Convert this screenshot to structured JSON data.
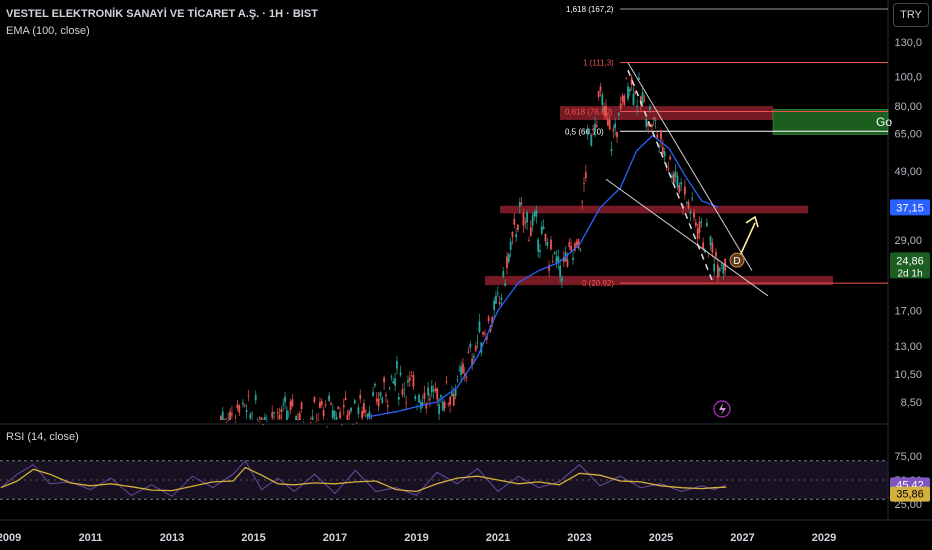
{
  "header": {
    "title": "VESTEL ELEKTRONİK SANAYİ VE TİCARET A.Ş. · 1H · BIST",
    "indicator": "EMA (100, close)",
    "currency": "TRY"
  },
  "colors": {
    "background": "#000000",
    "ema": "#2962ff",
    "rsi_line": "#d4b03c",
    "rsi_band": "#2a1f3d",
    "zone": "#8b1e2b",
    "green_box": "#1b5e20",
    "candle_up": "#26a69a",
    "candle_down": "#ef5350"
  },
  "chart_data": {
    "type": "line",
    "x_ticks": [
      "2009",
      "2011",
      "2013",
      "2015",
      "2017",
      "2019",
      "2021",
      "2023",
      "2025",
      "2027",
      "2029"
    ],
    "y_ticks": [
      "130,0",
      "100,0",
      "80,00",
      "65,00",
      "49,00",
      "29,00",
      "17,00",
      "13,00",
      "10,50",
      "8,50"
    ],
    "y_scale": "log",
    "price_badges": [
      {
        "label": "37,15",
        "value": 37.15,
        "color": "#2962ff"
      },
      {
        "label": "24,86",
        "value": 24.86,
        "color": "#1b5e20",
        "sub": "2d 1h"
      }
    ],
    "fib_levels": [
      {
        "label": "1,618 (167,2)",
        "value": 167.2
      },
      {
        "label": "1 (111,3)",
        "value": 111.3
      },
      {
        "label": "0,618 (76,80)",
        "value": 76.8
      },
      {
        "label": "0,5 (66,10)",
        "value": 66.1
      },
      {
        "label": "0 (20,92)",
        "value": 20.92
      }
    ],
    "annotation_point": "D",
    "green_box_text": "Go",
    "series": [
      {
        "name": "price",
        "x": [
          2014.2,
          2015,
          2016,
          2017,
          2017.5,
          2018,
          2018.5,
          2019,
          2019.5,
          2020,
          2020.5,
          2021,
          2021.5,
          2022,
          2022.5,
          2023,
          2023.2,
          2023.5,
          2023.8,
          2024,
          2024.2,
          2024.5,
          2024.8,
          2025,
          2025.3,
          2025.6,
          2026,
          2026.3,
          2026.6
        ],
        "y": [
          7.6,
          7.8,
          7.7,
          7.9,
          8.0,
          8.5,
          10.2,
          9.2,
          8.7,
          9.5,
          13.5,
          17.5,
          35,
          31,
          23,
          28,
          60,
          85,
          62,
          75,
          100,
          84,
          72,
          60,
          50,
          40,
          31,
          26,
          24.9
        ]
      },
      {
        "name": "EMA (100, close)",
        "x": [
          2017.8,
          2018.5,
          2019,
          2019.5,
          2020,
          2020.5,
          2021,
          2021.5,
          2022,
          2022.5,
          2023,
          2023.5,
          2024,
          2024.4,
          2024.8,
          2025.2,
          2025.6,
          2026,
          2026.4
        ],
        "y": [
          7.6,
          7.9,
          8.2,
          8.5,
          9.5,
          12,
          17,
          21,
          23,
          24.5,
          28,
          37,
          43,
          57,
          64,
          58,
          47,
          39,
          37.2
        ]
      }
    ],
    "rsi": {
      "label": "RSI (14, close)",
      "ticks": [
        "75,00",
        "50,00",
        "25,00"
      ],
      "badges": [
        {
          "label": "45,42",
          "value": 45.42,
          "color": "#7e57c2"
        },
        {
          "label": "35,86",
          "value": 35.86,
          "color": "#d4b03c"
        }
      ],
      "x": [
        2008.8,
        2009.2,
        2009.6,
        2010,
        2010.5,
        2011,
        2011.5,
        2012,
        2012.5,
        2013,
        2013.5,
        2014,
        2014.5,
        2014.8,
        2015.2,
        2015.6,
        2016,
        2016.5,
        2017,
        2017.5,
        2018,
        2018.5,
        2019,
        2019.5,
        2020,
        2020.5,
        2021,
        2021.5,
        2022,
        2022.5,
        2023,
        2023.5,
        2024,
        2024.5,
        2025,
        2025.5,
        2026,
        2026.3,
        2026.6
      ],
      "y": [
        42,
        56,
        66,
        46,
        48,
        40,
        52,
        34,
        45,
        33,
        54,
        42,
        56,
        70,
        40,
        52,
        38,
        56,
        36,
        60,
        38,
        42,
        34,
        58,
        46,
        62,
        38,
        54,
        42,
        48,
        66,
        44,
        54,
        42,
        46,
        38,
        44,
        40,
        45
      ]
    }
  }
}
